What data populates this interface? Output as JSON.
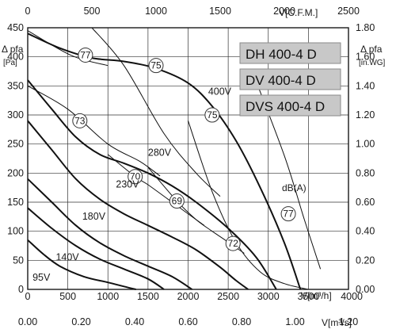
{
  "chart_data": {
    "type": "line",
    "axes": {
      "left": {
        "label_top": "Δ pfa",
        "unit": "[Pa]",
        "ticks": [
          0,
          50,
          100,
          150,
          200,
          250,
          300,
          350,
          400,
          450
        ],
        "range": [
          0,
          450
        ]
      },
      "right": {
        "label_top": "Δ pfa",
        "unit": "[in.WG]",
        "ticks": [
          "0.00",
          "0.20",
          "0.40",
          "0.60",
          "0.80",
          "1.00",
          "1.20",
          "1.40",
          "1.60",
          "1.80"
        ],
        "range": [
          0,
          1.8
        ]
      },
      "bottom": {
        "label": "V[m³/h]",
        "ticks": [
          0,
          500,
          1000,
          1500,
          2000,
          2500,
          3000,
          3500,
          4000
        ],
        "range": [
          0,
          4000
        ]
      },
      "bottom2": {
        "label": "V[m³/s]",
        "ticks": [
          "0.00",
          "0.20",
          "0.40",
          "0.60",
          "0.80",
          "1.00",
          "1.20"
        ],
        "range": [
          0,
          1.2
        ]
      },
      "top": {
        "label": "V[C.F.M.]",
        "ticks": [
          0,
          500,
          1000,
          1500,
          2000,
          2500
        ],
        "range": [
          0,
          2500
        ]
      }
    },
    "grid": true,
    "models": [
      "DH 400-4 D",
      "DV 400-4 D",
      "DVS 400-4 D"
    ],
    "series": [
      {
        "name": "400V",
        "x": [
          0,
          400,
          800,
          1200,
          1600,
          2000,
          2300,
          2600,
          2900,
          3200,
          3400
        ],
        "y": [
          440,
          415,
          398,
          392,
          380,
          355,
          315,
          255,
          175,
          80,
          0
        ]
      },
      {
        "name": "280V",
        "x": [
          0,
          300,
          600,
          900,
          1200,
          1500,
          1800,
          2100,
          2500,
          2850,
          3100
        ],
        "y": [
          360,
          310,
          262,
          232,
          217,
          200,
          178,
          150,
          105,
          55,
          0
        ]
      },
      {
        "name": "230V",
        "x": [
          0,
          300,
          600,
          900,
          1200,
          1500,
          1800,
          2100,
          2400,
          2600,
          2750
        ],
        "y": [
          290,
          240,
          190,
          155,
          130,
          110,
          90,
          68,
          38,
          15,
          0
        ]
      },
      {
        "name": "180V",
        "x": [
          0,
          300,
          600,
          900,
          1200,
          1500,
          1800,
          2050
        ],
        "y": [
          190,
          150,
          110,
          80,
          58,
          40,
          22,
          0
        ]
      },
      {
        "name": "140V",
        "x": [
          0,
          300,
          600,
          900,
          1200,
          1500,
          1700
        ],
        "y": [
          140,
          105,
          75,
          52,
          35,
          18,
          0
        ]
      },
      {
        "name": "95V",
        "x": [
          0,
          200,
          400,
          700,
          1000,
          1200,
          1350
        ],
        "y": [
          85,
          60,
          40,
          22,
          12,
          5,
          0
        ]
      }
    ],
    "db_lines": [
      {
        "label": "77",
        "x": [
          0,
          550,
          1000
        ],
        "y": [
          445,
          402,
          385
        ]
      },
      {
        "label": "75",
        "x": [
          800,
          1200,
          1700,
          2100,
          2400
        ],
        "y": [
          450,
          385,
          268,
          200,
          160
        ]
      },
      {
        "label": "73",
        "x": [
          0,
          500,
          1000,
          1400,
          1650
        ],
        "y": [
          350,
          310,
          250,
          220,
          195
        ]
      },
      {
        "label": "70",
        "x": [
          1000,
          1340,
          1500,
          1750,
          1950,
          2200
        ],
        "y": [
          232,
          194,
          180,
          155,
          135,
          110
        ]
      },
      {
        "label": "69",
        "x": [
          1500,
          1860,
          2100,
          2300,
          2450,
          2700
        ],
        "y": [
          210,
          152,
          120,
          100,
          86,
          62
        ]
      },
      {
        "label": "72",
        "x": [
          2000,
          2300,
          2600,
          2900,
          3200,
          3500
        ],
        "y": [
          290,
          168,
          80,
          30,
          10,
          0
        ]
      },
      {
        "label": "77",
        "x": [
          2800,
          3200,
          3450,
          3650
        ],
        "y": [
          375,
          230,
          120,
          35
        ]
      }
    ],
    "db_markers": [
      {
        "label": "77",
        "x": 720,
        "y": 403
      },
      {
        "label": "75",
        "x": 1600,
        "y": 385
      },
      {
        "label": "75",
        "x": 2300,
        "y": 300
      },
      {
        "label": "73",
        "x": 650,
        "y": 290
      },
      {
        "label": "70",
        "x": 1340,
        "y": 194
      },
      {
        "label": "69",
        "x": 1860,
        "y": 152
      },
      {
        "label": "72",
        "x": 2560,
        "y": 79
      },
      {
        "label": "77",
        "x": 3250,
        "y": 130
      }
    ],
    "voltage_labels": [
      {
        "text": "400V",
        "x": 2250,
        "y": 335
      },
      {
        "text": "280V",
        "x": 1500,
        "y": 230
      },
      {
        "text": "230V",
        "x": 1100,
        "y": 175
      },
      {
        "text": "180V",
        "x": 680,
        "y": 120
      },
      {
        "text": "140V",
        "x": 350,
        "y": 50
      },
      {
        "text": "95V",
        "x": 60,
        "y": 15
      }
    ],
    "db_unit_label": "dB(A)"
  }
}
